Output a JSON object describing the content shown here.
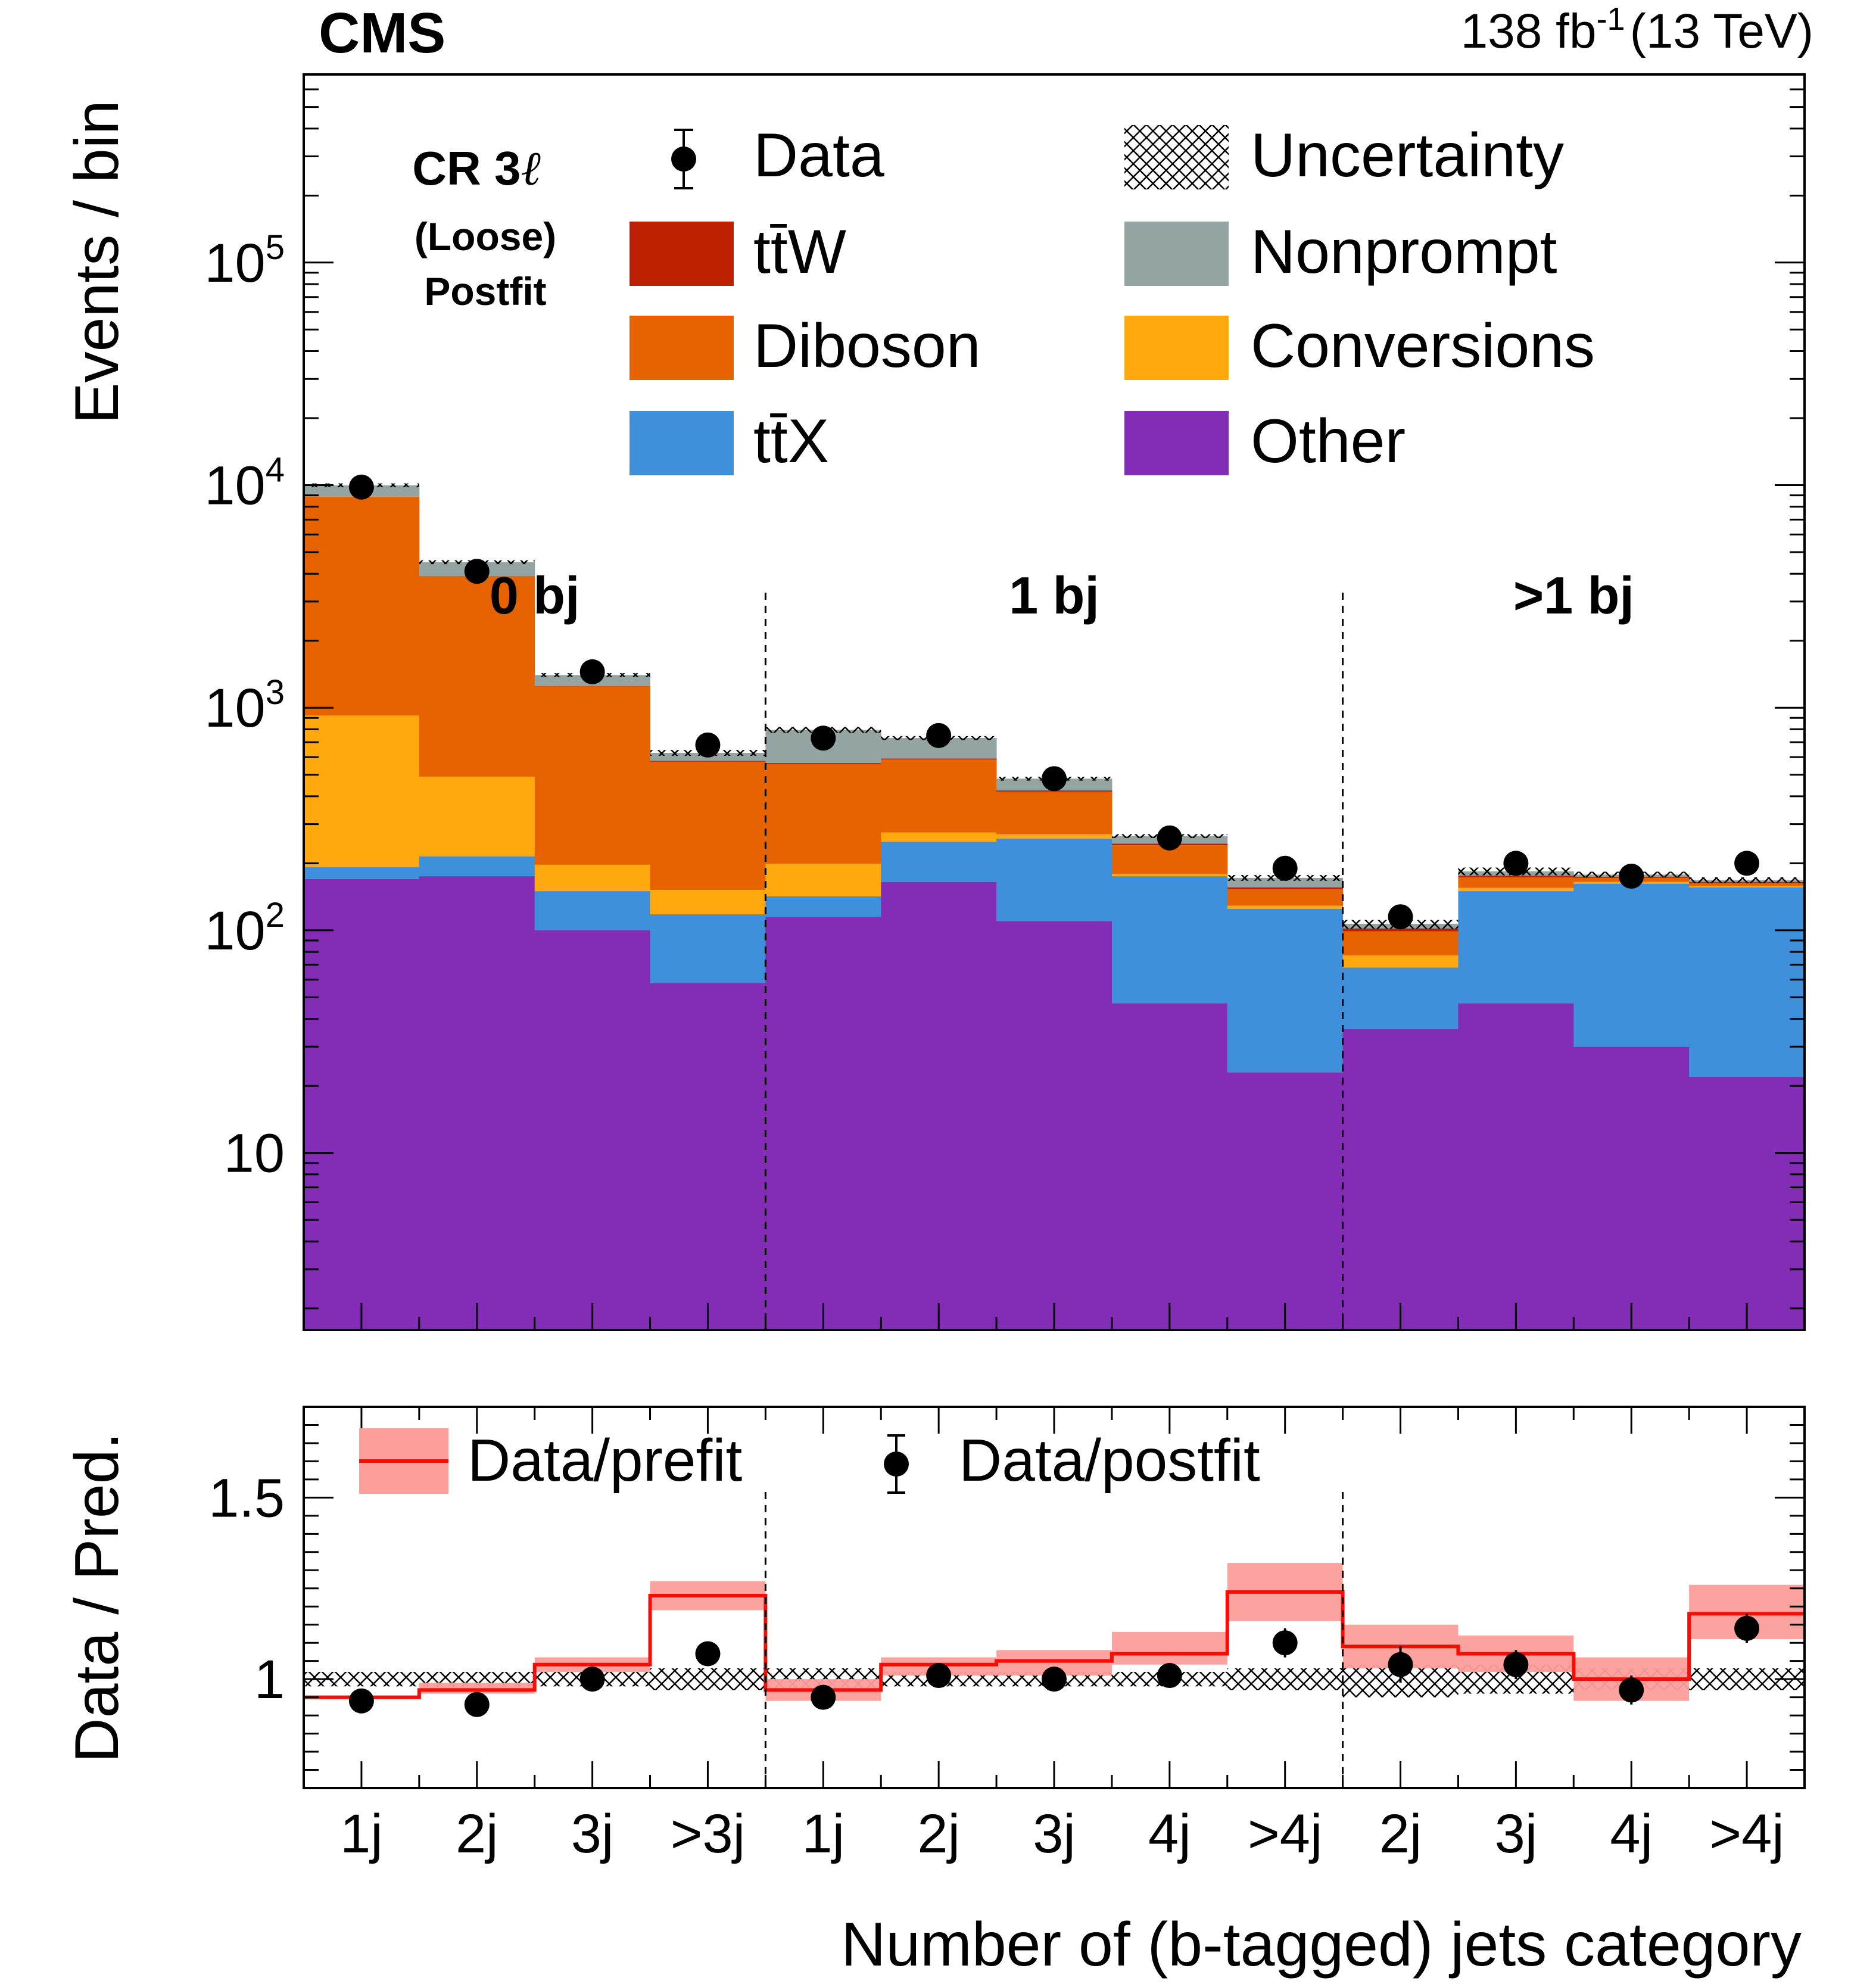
{
  "chart_data": {
    "type": "bar",
    "stacked": true,
    "log_y": true,
    "experiment": "CMS",
    "lumi": "138 fb",
    "lumi_exp": "-1",
    "energy": "(13 TeV)",
    "region_label": "CR 3",
    "region_symbol": "ℓ",
    "region_sub1": "(Loose)",
    "region_sub2": "Postfit",
    "ylabel": "Events / bin",
    "ratio_ylabel": "Data / Pred.",
    "xlabel": "Number of (b-tagged) jets category",
    "ylim": [
      1.6,
      700000
    ],
    "ratio_ylim": [
      0.7,
      1.75
    ],
    "y_tick_labels": [
      "10",
      "10",
      "10",
      "10",
      "10"
    ],
    "y_tick_exps": [
      "",
      "2",
      "3",
      "4",
      "5"
    ],
    "ratio_tick_labels": [
      "1",
      "1.5"
    ],
    "groups": [
      {
        "label": "0 bj",
        "start": 0,
        "end": 4
      },
      {
        "label": "1 bj",
        "start": 4,
        "end": 9
      },
      {
        "label": ">1 bj",
        "start": 9,
        "end": 13
      }
    ],
    "categories": [
      "1j",
      "2j",
      "3j",
      ">3j",
      "1j",
      "2j",
      "3j",
      "4j",
      ">4j",
      "2j",
      "3j",
      "4j",
      ">4j"
    ],
    "series": [
      {
        "name": "Other",
        "color": "#832db6",
        "values": [
          170,
          175,
          100,
          58,
          115,
          165,
          110,
          47,
          23,
          36,
          47,
          30,
          22
        ]
      },
      {
        "name": "tt̄X",
        "color": "#3f90da",
        "values": [
          22,
          40,
          50,
          60,
          27,
          85,
          148,
          128,
          102,
          32,
          103,
          132,
          134
        ]
      },
      {
        "name": "Conversions",
        "color": "#ffa90e",
        "values": [
          730,
          275,
          47,
          34,
          57,
          25,
          12,
          4,
          4,
          9,
          5,
          3,
          2
        ]
      },
      {
        "name": "Diboson",
        "color": "#e76300",
        "values": [
          7950,
          3410,
          1050,
          420,
          360,
          310,
          150,
          62,
          24,
          22,
          18,
          7,
          5
        ]
      },
      {
        "name": "tt̄W",
        "color": "#bd1f01",
        "values": [
          8,
          6,
          5,
          5,
          6,
          6,
          5,
          4,
          3,
          3,
          3,
          2,
          2
        ]
      },
      {
        "name": "Nonprompt",
        "color": "#94a4a2",
        "values": [
          1100,
          600,
          150,
          50,
          230,
          140,
          55,
          20,
          16,
          5,
          8,
          4,
          3
        ]
      }
    ],
    "data": {
      "name": "Data",
      "values": [
        9800,
        4100,
        1450,
        680,
        730,
        750,
        480,
        260,
        190,
        115,
        200,
        175,
        200
      ]
    },
    "uncertainty_label": "Uncertainty",
    "ratio": {
      "prefit_name": "Data/prefit",
      "postfit_name": "Data/postfit",
      "prefit_values": [
        0.95,
        0.97,
        1.04,
        1.23,
        0.97,
        1.04,
        1.05,
        1.07,
        1.24,
        1.09,
        1.07,
        1.0,
        1.18
      ],
      "prefit_band": [
        [
          0.95,
          0.95
        ],
        [
          0.96,
          0.99
        ],
        [
          1.02,
          1.06
        ],
        [
          1.19,
          1.27
        ],
        [
          0.94,
          1.0
        ],
        [
          1.01,
          1.06
        ],
        [
          1.01,
          1.08
        ],
        [
          1.04,
          1.13
        ],
        [
          1.16,
          1.32
        ],
        [
          1.03,
          1.15
        ],
        [
          1.02,
          1.12
        ],
        [
          0.94,
          1.06
        ],
        [
          1.11,
          1.26
        ]
      ],
      "postfit_values": [
        0.94,
        0.93,
        1.0,
        1.07,
        0.95,
        1.01,
        1.0,
        1.01,
        1.1,
        1.04,
        1.04,
        0.97,
        1.14
      ],
      "postfit_errors": [
        0.01,
        0.01,
        0.01,
        0.02,
        0.01,
        0.02,
        0.02,
        0.03,
        0.04,
        0.05,
        0.04,
        0.04,
        0.04
      ],
      "unc_band": [
        [
          0.98,
          1.02
        ],
        [
          0.98,
          1.02
        ],
        [
          0.98,
          1.02
        ],
        [
          0.97,
          1.03
        ],
        [
          0.97,
          1.03
        ],
        [
          0.98,
          1.02
        ],
        [
          0.98,
          1.02
        ],
        [
          0.98,
          1.02
        ],
        [
          0.97,
          1.03
        ],
        [
          0.95,
          1.04
        ],
        [
          0.96,
          1.04
        ],
        [
          0.97,
          1.03
        ],
        [
          0.97,
          1.03
        ]
      ]
    }
  }
}
